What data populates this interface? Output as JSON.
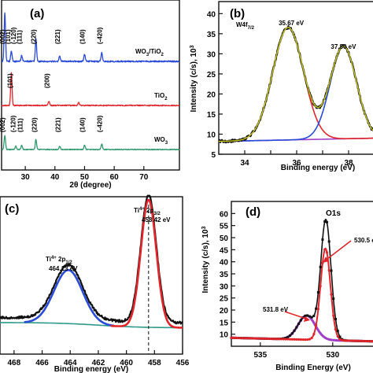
{
  "chart_data": [
    {
      "panel": "(a)",
      "type": "line",
      "xlabel": "2θ (degree)",
      "ylabel": "",
      "xlim": [
        22,
        82
      ],
      "xticks": [
        30,
        40,
        50,
        60,
        70
      ],
      "grid": false,
      "series": [
        {
          "name": "WO3/TiO2",
          "label_main": "WO",
          "label_sub1": "3",
          "label_mid": "/TiO",
          "label_sub2": "2",
          "color": "#2a4bd7",
          "peaks": [
            [
              23.1,
              1.0
            ],
            [
              25.3,
              0.22
            ],
            [
              28.8,
              0.12
            ],
            [
              33.6,
              0.45
            ],
            [
              41.6,
              0.12
            ],
            [
              50.0,
              0.15
            ],
            [
              55.8,
              0.18
            ]
          ],
          "miller": [
            {
              "x": 23.1,
              "text": "(002)"
            },
            {
              "x": 24.9,
              "text": "(101)"
            },
            {
              "x": 26.8,
              "text": "(-120)"
            },
            {
              "x": 28.8,
              "text": "(111)"
            },
            {
              "x": 33.6,
              "text": "(220)"
            },
            {
              "x": 41.6,
              "text": "(221)"
            },
            {
              "x": 50.0,
              "text": "(140)"
            },
            {
              "x": 55.8,
              "text": "(-420)"
            }
          ]
        },
        {
          "name": "TiO2",
          "label_main": "TiO",
          "label_sub1": "2",
          "label_mid": "",
          "label_sub2": "",
          "color": "#e0262b",
          "peaks": [
            [
              25.3,
              0.9
            ],
            [
              38.0,
              0.12
            ],
            [
              48.0,
              0.08
            ]
          ],
          "miller": [
            {
              "x": 25.6,
              "text": "(101)"
            },
            {
              "x": 38.0,
              "text": "(200)"
            }
          ]
        },
        {
          "name": "WO3",
          "label_main": "WO",
          "label_sub1": "3",
          "label_mid": "",
          "label_sub2": "",
          "color": "#2e9a6c",
          "peaks": [
            [
              23.1,
              0.5
            ],
            [
              26.8,
              0.12
            ],
            [
              28.8,
              0.15
            ],
            [
              33.6,
              0.35
            ],
            [
              41.6,
              0.12
            ],
            [
              50.0,
              0.16
            ],
            [
              55.8,
              0.2
            ]
          ],
          "miller": [
            {
              "x": 23.0,
              "text": "(002)"
            },
            {
              "x": 26.6,
              "text": "(-120)"
            },
            {
              "x": 29.0,
              "text": "(111)"
            },
            {
              "x": 33.8,
              "text": "(220)"
            },
            {
              "x": 41.8,
              "text": "(221)"
            },
            {
              "x": 50.0,
              "text": "(140)"
            },
            {
              "x": 55.8,
              "text": "(-420)"
            }
          ]
        }
      ]
    },
    {
      "panel": "(b)",
      "type": "line",
      "xlabel": "Binding energy (eV)",
      "ylabel": "Intensity (c/s), 10",
      "ylabel_sup": "3",
      "xlim": [
        33,
        39
      ],
      "ylim": [
        5,
        43
      ],
      "xticks": [
        34,
        35,
        36,
        37,
        38
      ],
      "xtick_labels": [
        "34",
        "",
        "36",
        "",
        "38"
      ],
      "yticks": [
        5,
        10,
        15,
        20,
        25,
        30,
        35,
        40
      ],
      "peak_label_main": "W4f",
      "peak_label_sub": "7/2",
      "annotations": [
        {
          "x": 35.67,
          "text": "35.67 eV"
        },
        {
          "x": 37.8,
          "text": "37.80 eV"
        }
      ],
      "components": [
        {
          "role": "fit-peak-1",
          "center": 35.67,
          "fwhm": 1.4,
          "height": 28.0,
          "color": "#e0262b"
        },
        {
          "role": "fit-peak-2",
          "center": 37.8,
          "fwhm": 1.2,
          "height": 23.0,
          "color": "#2a4bd7"
        },
        {
          "role": "background",
          "baseline": [
            8.2,
            9.0
          ],
          "color": "#a040c8"
        },
        {
          "role": "envelope",
          "color": "#c8c81e"
        },
        {
          "role": "experimental",
          "color": "#111111"
        }
      ]
    },
    {
      "panel": "(c)",
      "type": "line",
      "xlabel": "Binding energy (eV)",
      "ylabel": "",
      "xlim": [
        469,
        456
      ],
      "xticks": [
        468,
        466,
        464,
        462,
        460,
        458,
        456
      ],
      "dashed_line_x": 458.42,
      "annotations": [
        {
          "id": "ti-2p12",
          "pre": "Ti",
          "sup": "4+",
          "post": " 2p",
          "sub": "1/2",
          "energy": "464.13 eV"
        },
        {
          "id": "ti-2p32",
          "pre": "Ti",
          "sup": "4+",
          "post": " 2p",
          "sub": "3/2",
          "energy": "458.42 eV"
        }
      ],
      "components": [
        {
          "role": "fit-peak-1",
          "center": 464.13,
          "fwhm": 2.4,
          "height": 0.42,
          "color": "#2a4bd7"
        },
        {
          "role": "fit-peak-2",
          "center": 458.42,
          "fwhm": 1.3,
          "height": 1.0,
          "color": "#e0262b"
        },
        {
          "role": "background",
          "color": "#2e9a8a"
        },
        {
          "role": "experimental",
          "color": "#111111"
        }
      ]
    },
    {
      "panel": "(d)",
      "type": "line",
      "xlabel": "Binding Energy (eV)",
      "ylabel": "Intensity (c/s), 10",
      "ylabel_sup": "3",
      "xlim": [
        537,
        527
      ],
      "ylim": [
        5,
        65
      ],
      "xticks": [
        535,
        530
      ],
      "yticks": [
        10,
        15,
        20,
        25,
        30,
        35,
        40,
        45,
        50,
        55,
        60
      ],
      "title": "O1s",
      "annotations": [
        {
          "x": 530.5,
          "text": "530.5 eV"
        },
        {
          "x": 531.8,
          "text": "531.8 eV"
        }
      ],
      "components": [
        {
          "role": "fit-peak-1",
          "center": 530.5,
          "fwhm": 0.8,
          "height": 38.0,
          "color": "#e0262b"
        },
        {
          "role": "fit-peak-2",
          "center": 531.8,
          "fwhm": 1.4,
          "height": 10.0,
          "color": "#a040c8"
        },
        {
          "role": "experimental",
          "color": "#111111"
        }
      ]
    }
  ]
}
